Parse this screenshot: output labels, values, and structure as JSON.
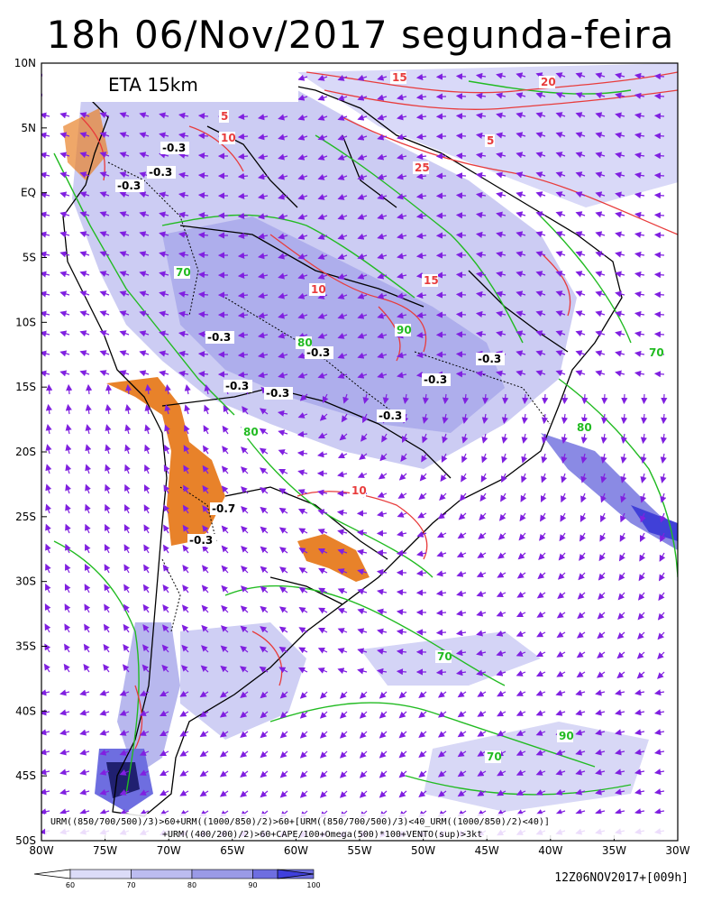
{
  "title": "18h 06/Nov/2017 segunda-feira",
  "model_label": "ETA 15km",
  "run_label": "12Z06NOV2017+[009h]",
  "formula_line1": "URM((850/700/500)/3)>60+URM((1000/850)/2)>60+[URM((850/700/500)/3)<40_URM((1000/850)/2)<40)]",
  "formula_line2": "+URM((400/200)/2)>60+CAPE/100+Omega(500)*100+VENTO(sup)>3kt",
  "lat_labels": [
    "10N",
    "5N",
    "EQ",
    "5S",
    "10S",
    "15S",
    "20S",
    "25S",
    "30S",
    "35S",
    "40S",
    "45S",
    "50S"
  ],
  "lon_labels": [
    "80W",
    "75W",
    "70W",
    "65W",
    "60W",
    "55W",
    "50W",
    "45W",
    "40W",
    "35W",
    "30W"
  ],
  "colorbar": {
    "labels": [
      "60",
      "70",
      "80",
      "90",
      "100"
    ],
    "colors": [
      "#ffffff",
      "#dcdcf8",
      "#bcbcf0",
      "#9a9ae6",
      "#6e6ee0",
      "#3f3fdc"
    ]
  },
  "colors": {
    "coast": "#000000",
    "green_contour": "#22bb22",
    "red_contour": "#e83c3c",
    "wind_vector": "#8020e0",
    "orange_fill": "#e8822a"
  },
  "contour_labels": [
    {
      "text": "-0.3",
      "c": "black"
    },
    {
      "text": "-0.3",
      "c": "black"
    },
    {
      "text": "-0.3",
      "c": "black"
    },
    {
      "text": "-0.3",
      "c": "black"
    },
    {
      "text": "-0.3",
      "c": "black"
    },
    {
      "text": "-0.3",
      "c": "black"
    },
    {
      "text": "-0.3",
      "c": "black"
    },
    {
      "text": "-0.3",
      "c": "black"
    },
    {
      "text": "-0.3",
      "c": "black"
    },
    {
      "text": "-0.3",
      "c": "black"
    },
    {
      "text": "-0.7",
      "c": "black"
    },
    {
      "text": "-0.3",
      "c": "black"
    },
    {
      "text": "70",
      "c": "green"
    },
    {
      "text": "80",
      "c": "green"
    },
    {
      "text": "90",
      "c": "green"
    },
    {
      "text": "80",
      "c": "green"
    },
    {
      "text": "70",
      "c": "green"
    },
    {
      "text": "70",
      "c": "green"
    },
    {
      "text": "80",
      "c": "green"
    },
    {
      "text": "90",
      "c": "green"
    },
    {
      "text": "70",
      "c": "green"
    },
    {
      "text": "5",
      "c": "red"
    },
    {
      "text": "10",
      "c": "red"
    },
    {
      "text": "15",
      "c": "red"
    },
    {
      "text": "20",
      "c": "red"
    },
    {
      "text": "25",
      "c": "red"
    },
    {
      "text": "5",
      "c": "red"
    },
    {
      "text": "10",
      "c": "red"
    },
    {
      "text": "15",
      "c": "red"
    },
    {
      "text": "10",
      "c": "red"
    }
  ]
}
